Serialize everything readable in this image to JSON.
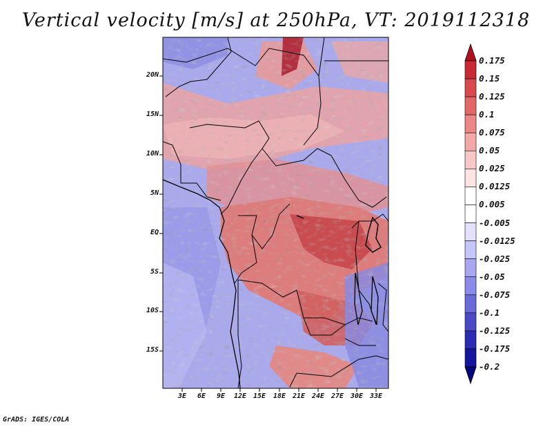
{
  "title": "Vertical velocity [m/s] at 250hPa, VT: 2019112318",
  "credit": "GrADS: IGES/COLA",
  "map": {
    "lat_ticks": [
      "20N",
      "15N",
      "10N",
      "5N",
      "EQ",
      "5S",
      "10S",
      "15S"
    ],
    "lon_ticks": [
      "3E",
      "6E",
      "9E",
      "12E",
      "15E",
      "18E",
      "21E",
      "24E",
      "27E",
      "30E",
      "33E"
    ]
  },
  "colorbar": {
    "labels": [
      "0.175",
      "0.15",
      "0.125",
      "0.1",
      "0.075",
      "0.05",
      "0.025",
      "0.0125",
      "0.005",
      "-0.005",
      "-0.0125",
      "-0.025",
      "-0.05",
      "-0.075",
      "-0.1",
      "-0.125",
      "-0.175",
      "-0.2"
    ],
    "colors": [
      "#b01020",
      "#c82a35",
      "#d84a4e",
      "#e26868",
      "#eb8787",
      "#f3a8a8",
      "#f8c8c8",
      "#fce4e4",
      "#ffffff",
      "#ffffff",
      "#e2e2ff",
      "#c6c6fb",
      "#a8a8f2",
      "#8a8ae8",
      "#6a6ad8",
      "#4a4ac6",
      "#2c2cb2",
      "#16169c",
      "#06067e"
    ]
  }
}
